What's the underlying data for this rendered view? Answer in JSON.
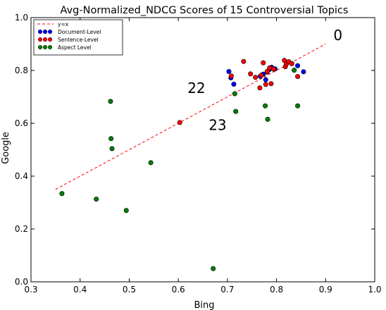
{
  "chart_data": {
    "type": "scatter",
    "title": "Avg-Normalized_NDCG Scores of 15 Controversial Topics",
    "xlabel": "Bing",
    "ylabel": "Google",
    "xlim": [
      0.3,
      1.0
    ],
    "ylim": [
      0.0,
      1.0
    ],
    "xticks": [
      0.3,
      0.4,
      0.5,
      0.6,
      0.7,
      0.8,
      0.9,
      1.0
    ],
    "yticks": [
      0.0,
      0.2,
      0.4,
      0.6,
      0.8,
      1.0
    ],
    "xtick_labels": [
      "0.3",
      "0.4",
      "0.5",
      "0.6",
      "0.7",
      "0.8",
      "0.9",
      "1.0"
    ],
    "ytick_labels": [
      "0.0",
      "0.2",
      "0.4",
      "0.6",
      "0.8",
      "1.0"
    ],
    "grid": false,
    "legend_position": "top-left",
    "reference_line": {
      "name": "y=x",
      "x": [
        0.35,
        0.9
      ],
      "y": [
        0.35,
        0.9
      ],
      "color": "#ff0000",
      "style": "dashed"
    },
    "series": [
      {
        "name": "Document-Level",
        "color": "#0000ff",
        "x": [
          0.703,
          0.707,
          0.713,
          0.767,
          0.773,
          0.778,
          0.781,
          0.785,
          0.79,
          0.797,
          0.831,
          0.843,
          0.855
        ],
        "y": [
          0.796,
          0.772,
          0.748,
          0.778,
          0.786,
          0.765,
          0.794,
          0.803,
          0.812,
          0.806,
          0.826,
          0.818,
          0.795
        ]
      },
      {
        "name": "Sentence-Level",
        "color": "#ff0000",
        "x": [
          0.603,
          0.708,
          0.733,
          0.747,
          0.757,
          0.766,
          0.769,
          0.773,
          0.778,
          0.781,
          0.786,
          0.789,
          0.794,
          0.816,
          0.818,
          0.82,
          0.825,
          0.831,
          0.843
        ],
        "y": [
          0.603,
          0.779,
          0.834,
          0.787,
          0.774,
          0.734,
          0.782,
          0.829,
          0.747,
          0.796,
          0.81,
          0.75,
          0.805,
          0.838,
          0.814,
          0.824,
          0.833,
          0.826,
          0.777
        ]
      },
      {
        "name": "Aspect Level",
        "color": "#007f00",
        "x": [
          0.363,
          0.433,
          0.462,
          0.463,
          0.465,
          0.494,
          0.544,
          0.671,
          0.715,
          0.717,
          0.777,
          0.782,
          0.836,
          0.843
        ],
        "y": [
          0.334,
          0.313,
          0.683,
          0.542,
          0.504,
          0.27,
          0.451,
          0.05,
          0.712,
          0.645,
          0.666,
          0.615,
          0.801,
          0.666
        ]
      }
    ],
    "annotations": [
      {
        "text": "0",
        "x": 0.925,
        "y": 0.915
      },
      {
        "text": "22",
        "x": 0.637,
        "y": 0.715
      },
      {
        "text": "23",
        "x": 0.68,
        "y": 0.575
      }
    ]
  }
}
